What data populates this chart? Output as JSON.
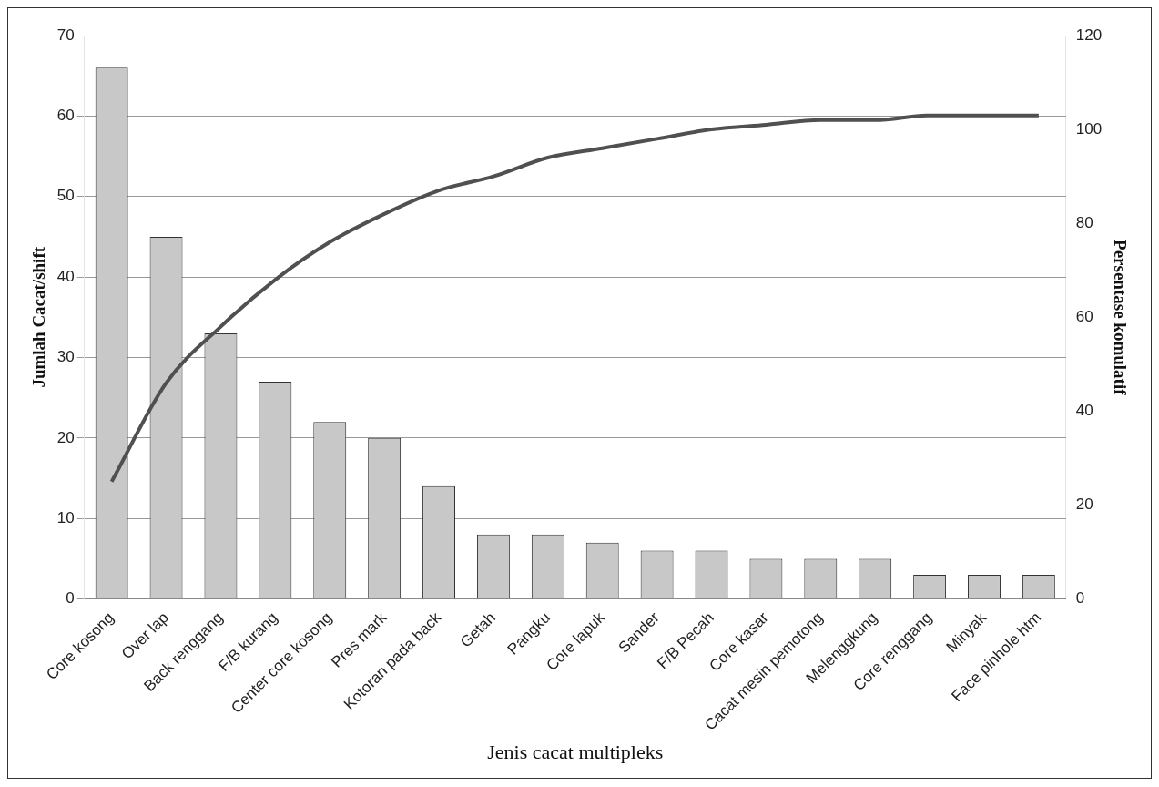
{
  "chart_data": {
    "type": "bar",
    "xlabel": "Jenis cacat multipleks",
    "ylabel": "Jumlah Cacat/shift",
    "y2label": "Persentase komulatif",
    "categories": [
      "Core kosong",
      "Over lap",
      "Back renggang",
      "F/B kurang",
      "Center core kosong",
      "Pres mark",
      "Kotoran pada back",
      "Getah",
      "Pangku",
      "Core lapuk",
      "Sander",
      "F/B Pecah",
      "Core kasar",
      "Cacat mesin pemotong",
      "Melenggkung",
      "Core renggang",
      "Minyak",
      "Face pinhole htm"
    ],
    "series": [
      {
        "color": "#c8c8c8",
        "values": [
          66,
          45,
          33,
          27,
          22,
          20,
          14,
          8,
          8,
          7,
          6,
          6,
          5,
          5,
          5,
          3,
          3,
          3
        ]
      },
      {
        "type": "line",
        "axis": "y2",
        "color": "#505050",
        "values": [
          25,
          46,
          58,
          68,
          76,
          82,
          87,
          90,
          94,
          96,
          98,
          100,
          101,
          102,
          102,
          103,
          103,
          103
        ]
      }
    ],
    "ylim": [
      0,
      70
    ],
    "yticks": [
      0,
      10,
      20,
      30,
      40,
      50,
      60,
      70
    ],
    "y2lim": [
      0,
      120
    ],
    "y2ticks": [
      0,
      20,
      40,
      60,
      80,
      100,
      120
    ],
    "grid": "y",
    "legend": false,
    "marker": "none",
    "line_style": "solid"
  }
}
